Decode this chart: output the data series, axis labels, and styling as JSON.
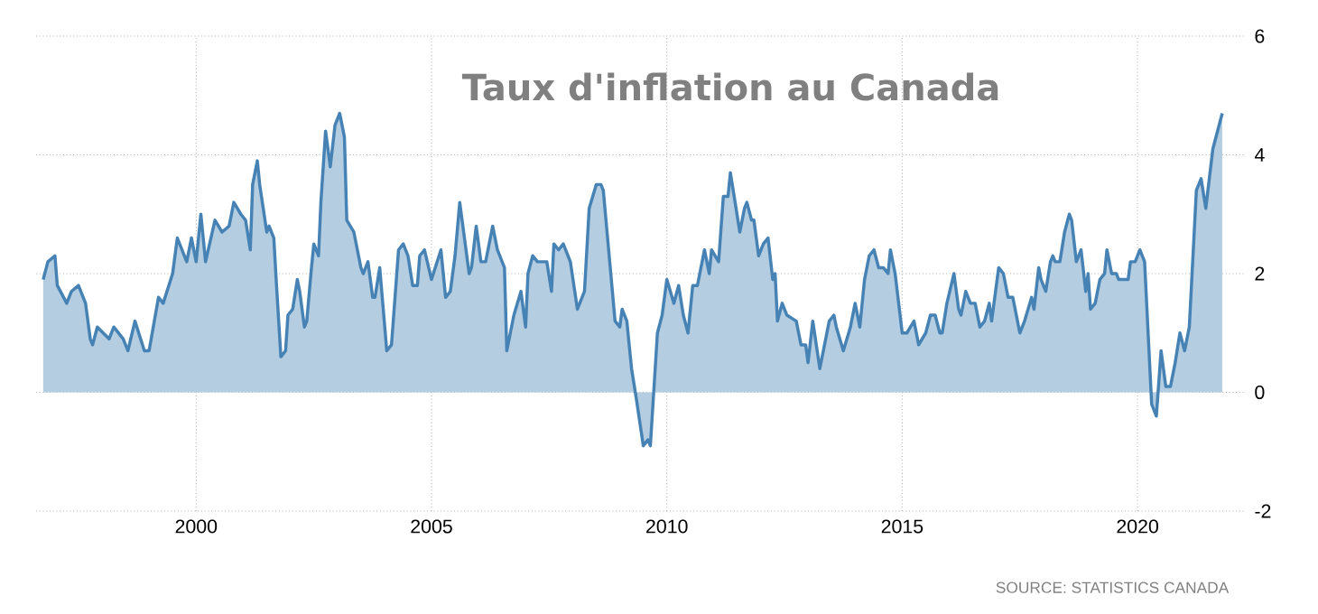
{
  "chart_data": {
    "type": "area",
    "title": "Taux d'inflation au Canada",
    "annotations": [
      "SOURCE: STATISTICS CANADA"
    ],
    "x": [
      1996.75,
      1996.85,
      1997.0,
      1997.05,
      1997.25,
      1997.35,
      1997.5,
      1997.65,
      1997.75,
      1997.8,
      1997.9,
      1998.15,
      1998.25,
      1998.45,
      1998.55,
      1998.7,
      1998.9,
      1999.0,
      1999.2,
      1999.3,
      1999.5,
      1999.6,
      1999.8,
      1999.9,
      2000.0,
      2000.1,
      2000.2,
      2000.4,
      2000.55,
      2000.7,
      2000.8,
      2000.95,
      2001.05,
      2001.15,
      2001.2,
      2001.3,
      2001.35,
      2001.5,
      2001.55,
      2001.65,
      2001.7,
      2001.8,
      2001.9,
      2001.95,
      2002.05,
      2002.15,
      2002.2,
      2002.3,
      2002.35,
      2002.45,
      2002.5,
      2002.6,
      2002.65,
      2002.75,
      2002.85,
      2002.95,
      2003.05,
      2003.15,
      2003.2,
      2003.35,
      2003.5,
      2003.55,
      2003.65,
      2003.75,
      2003.8,
      2003.9,
      2004.05,
      2004.15,
      2004.3,
      2004.4,
      2004.5,
      2004.6,
      2004.7,
      2004.75,
      2004.85,
      2005.0,
      2005.2,
      2005.3,
      2005.4,
      2005.5,
      2005.6,
      2005.8,
      2005.85,
      2005.95,
      2006.05,
      2006.15,
      2006.3,
      2006.4,
      2006.55,
      2006.6,
      2006.75,
      2006.9,
      2007.0,
      2007.05,
      2007.15,
      2007.25,
      2007.45,
      2007.55,
      2007.6,
      2007.7,
      2007.8,
      2007.95,
      2008.1,
      2008.25,
      2008.35,
      2008.5,
      2008.6,
      2008.65,
      2008.9,
      2009.0,
      2009.05,
      2009.15,
      2009.25,
      2009.35,
      2009.5,
      2009.6,
      2009.65,
      2009.8,
      2009.9,
      2010.0,
      2010.15,
      2010.25,
      2010.35,
      2010.45,
      2010.55,
      2010.65,
      2010.8,
      2010.9,
      2010.95,
      2011.1,
      2011.2,
      2011.3,
      2011.35,
      2011.45,
      2011.55,
      2011.65,
      2011.7,
      2011.8,
      2011.85,
      2011.95,
      2012.05,
      2012.15,
      2012.25,
      2012.3,
      2012.35,
      2012.45,
      2012.55,
      2012.75,
      2012.85,
      2012.95,
      2013.0,
      2013.1,
      2013.25,
      2013.35,
      2013.45,
      2013.55,
      2013.6,
      2013.75,
      2013.9,
      2014.0,
      2014.1,
      2014.2,
      2014.3,
      2014.4,
      2014.5,
      2014.6,
      2014.7,
      2014.75,
      2014.85,
      2015.0,
      2015.1,
      2015.25,
      2015.35,
      2015.5,
      2015.6,
      2015.7,
      2015.8,
      2015.85,
      2015.95,
      2016.1,
      2016.2,
      2016.25,
      2016.35,
      2016.45,
      2016.55,
      2016.65,
      2016.75,
      2016.85,
      2016.9,
      2017.05,
      2017.15,
      2017.25,
      2017.35,
      2017.5,
      2017.6,
      2017.75,
      2017.8,
      2017.9,
      2017.95,
      2018.05,
      2018.15,
      2018.2,
      2018.25,
      2018.35,
      2018.45,
      2018.55,
      2018.6,
      2018.7,
      2018.8,
      2018.9,
      2018.95,
      2019.0,
      2019.1,
      2019.2,
      2019.3,
      2019.35,
      2019.45,
      2019.55,
      2019.6,
      2019.8,
      2019.85,
      2019.95,
      2020.05,
      2020.15,
      2020.3,
      2020.4,
      2020.5,
      2020.6,
      2020.7,
      2020.8,
      2020.9,
      2021.0,
      2021.1,
      2021.25,
      2021.35,
      2021.45,
      2021.6,
      2021.8
    ],
    "values": [
      1.9,
      2.2,
      2.3,
      1.8,
      1.5,
      1.7,
      1.8,
      1.5,
      0.9,
      0.8,
      1.1,
      0.9,
      1.1,
      0.9,
      0.7,
      1.2,
      0.7,
      0.7,
      1.6,
      1.5,
      2.0,
      2.6,
      2.2,
      2.6,
      2.2,
      3.0,
      2.2,
      2.9,
      2.7,
      2.8,
      3.2,
      3.0,
      2.9,
      2.4,
      3.5,
      3.9,
      3.5,
      2.7,
      2.8,
      2.6,
      1.9,
      0.6,
      0.7,
      1.3,
      1.4,
      1.9,
      1.7,
      1.1,
      1.2,
      2.1,
      2.5,
      2.3,
      3.2,
      4.4,
      3.8,
      4.5,
      4.7,
      4.3,
      2.9,
      2.7,
      2.1,
      2.0,
      2.2,
      1.6,
      1.6,
      2.1,
      0.7,
      0.8,
      2.4,
      2.5,
      2.3,
      1.8,
      1.8,
      2.3,
      2.4,
      1.9,
      2.4,
      1.6,
      1.7,
      2.3,
      3.2,
      2.0,
      2.1,
      2.8,
      2.2,
      2.2,
      2.8,
      2.4,
      2.1,
      0.7,
      1.3,
      1.7,
      1.1,
      2.0,
      2.3,
      2.2,
      2.2,
      1.7,
      2.5,
      2.4,
      2.5,
      2.2,
      1.4,
      1.7,
      3.1,
      3.5,
      3.5,
      3.4,
      1.2,
      1.1,
      1.4,
      1.2,
      0.4,
      -0.1,
      -0.9,
      -0.8,
      -0.9,
      1.0,
      1.3,
      1.9,
      1.5,
      1.8,
      1.3,
      1.0,
      1.8,
      1.8,
      2.4,
      2.0,
      2.4,
      2.2,
      3.3,
      3.3,
      3.7,
      3.2,
      2.7,
      3.1,
      3.2,
      2.9,
      2.9,
      2.3,
      2.5,
      2.6,
      1.9,
      2.0,
      1.2,
      1.5,
      1.3,
      1.2,
      0.8,
      0.8,
      0.5,
      1.2,
      0.4,
      0.8,
      1.2,
      1.3,
      1.1,
      0.7,
      1.1,
      1.5,
      1.1,
      1.9,
      2.3,
      2.4,
      2.1,
      2.1,
      2.0,
      2.4,
      2.0,
      1.0,
      1.0,
      1.2,
      0.8,
      1.0,
      1.3,
      1.3,
      1.0,
      1.0,
      1.5,
      2.0,
      1.4,
      1.3,
      1.7,
      1.5,
      1.5,
      1.1,
      1.2,
      1.5,
      1.2,
      2.1,
      2.0,
      1.6,
      1.6,
      1.0,
      1.2,
      1.6,
      1.4,
      2.1,
      1.9,
      1.7,
      2.2,
      2.3,
      2.2,
      2.2,
      2.7,
      3.0,
      2.9,
      2.2,
      2.4,
      1.7,
      2.0,
      1.4,
      1.5,
      1.9,
      2.0,
      2.4,
      2.0,
      2.0,
      1.9,
      1.9,
      2.2,
      2.2,
      2.4,
      2.2,
      -0.2,
      -0.4,
      0.7,
      0.1,
      0.1,
      0.5,
      1.0,
      0.7,
      1.1,
      3.4,
      3.6,
      3.1,
      4.1,
      4.7
    ],
    "color": "#4682b4",
    "xlim": [
      1996.6,
      2022.3
    ],
    "ylim": [
      -2,
      6
    ],
    "xticks": [
      2000,
      2005,
      2010,
      2015,
      2020
    ],
    "yticks": [
      -2,
      0,
      2,
      4,
      6
    ],
    "grid": true
  }
}
